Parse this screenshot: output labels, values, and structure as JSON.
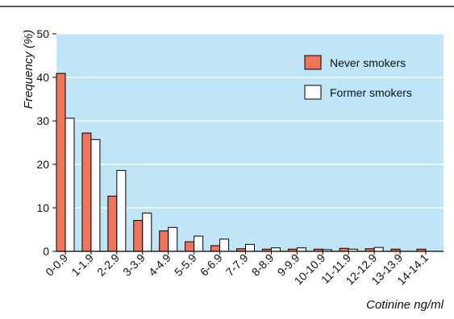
{
  "chart_data": {
    "type": "bar",
    "title": "",
    "xlabel": "Cotinine ng/ml",
    "ylabel": "Frequency (%)",
    "ylim": [
      0,
      50
    ],
    "yticks": [
      0,
      10,
      20,
      30,
      40,
      50
    ],
    "grid": true,
    "legend_position": "top-right",
    "categories": [
      "0-0.9",
      "1-1.9",
      "2-2.9",
      "3-3.9",
      "4-4.9",
      "5-5.9",
      "6-6.9",
      "7-7.9",
      "8-8.9",
      "9-9.9",
      "10-10.9",
      "11-11.9",
      "12-12.9",
      "13-13.9",
      "14-14.1"
    ],
    "series": [
      {
        "name": "Never smokers",
        "color": "#f0735a",
        "values": [
          40.9,
          27.2,
          12.7,
          7.1,
          4.7,
          2.2,
          1.3,
          0.6,
          0.5,
          0.5,
          0.5,
          0.7,
          0.6,
          0.5,
          0.5
        ]
      },
      {
        "name": "Former smokers",
        "color": "#ffffff",
        "values": [
          30.6,
          25.7,
          18.6,
          8.8,
          5.5,
          3.5,
          2.8,
          1.6,
          0.8,
          0.8,
          0.4,
          0.5,
          0.9,
          0.0,
          0.0
        ]
      }
    ],
    "plot_background": "#bfe5f7",
    "grid_color": "#ffffff"
  }
}
